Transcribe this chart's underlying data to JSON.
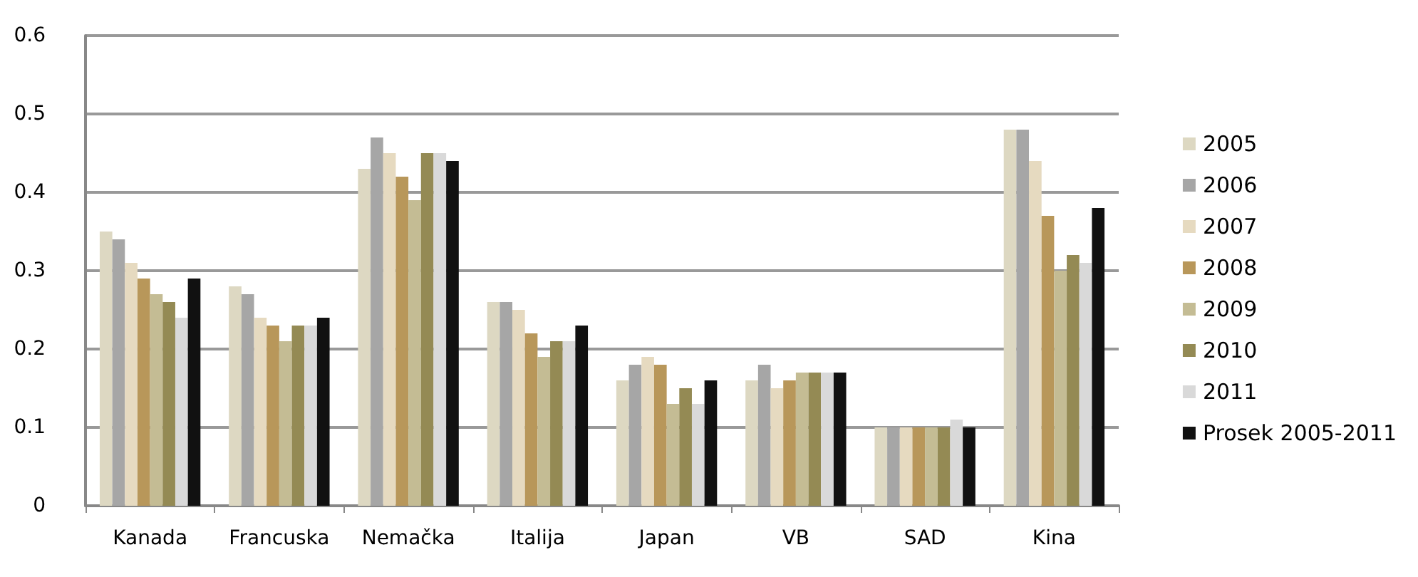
{
  "chart_data": {
    "type": "bar",
    "categories": [
      "Kanada",
      "Francuska",
      "Nemačka",
      "Italija",
      "Japan",
      "VB",
      "SAD",
      "Kina"
    ],
    "series": [
      {
        "name": "2005",
        "color": "#ddd8c2",
        "values": [
          0.35,
          0.28,
          0.43,
          0.26,
          0.16,
          0.16,
          0.1,
          0.48
        ]
      },
      {
        "name": "2006",
        "color": "#a6a6a6",
        "values": [
          0.34,
          0.27,
          0.47,
          0.26,
          0.18,
          0.18,
          0.1,
          0.48
        ]
      },
      {
        "name": "2007",
        "color": "#e6dac0",
        "values": [
          0.31,
          0.24,
          0.45,
          0.25,
          0.19,
          0.15,
          0.1,
          0.44
        ]
      },
      {
        "name": "2008",
        "color": "#b8975a",
        "values": [
          0.29,
          0.23,
          0.42,
          0.22,
          0.18,
          0.16,
          0.1,
          0.37
        ]
      },
      {
        "name": "2009",
        "color": "#c4bc94",
        "values": [
          0.27,
          0.21,
          0.39,
          0.19,
          0.13,
          0.17,
          0.1,
          0.3
        ]
      },
      {
        "name": "2010",
        "color": "#948a54",
        "values": [
          0.26,
          0.23,
          0.45,
          0.21,
          0.15,
          0.17,
          0.1,
          0.32
        ]
      },
      {
        "name": "2011",
        "color": "#d9d9d9",
        "values": [
          0.24,
          0.23,
          0.45,
          0.21,
          0.13,
          0.17,
          0.11,
          0.31
        ]
      },
      {
        "name": "Prosek 2005-2011",
        "color": "#111111",
        "values": [
          0.29,
          0.24,
          0.44,
          0.23,
          0.16,
          0.17,
          0.1,
          0.38
        ]
      }
    ],
    "ylim": [
      0,
      0.6
    ],
    "yticks": [
      0,
      0.1,
      0.2,
      0.3,
      0.4,
      0.5,
      0.6
    ],
    "grid": "y",
    "legend": "right"
  }
}
